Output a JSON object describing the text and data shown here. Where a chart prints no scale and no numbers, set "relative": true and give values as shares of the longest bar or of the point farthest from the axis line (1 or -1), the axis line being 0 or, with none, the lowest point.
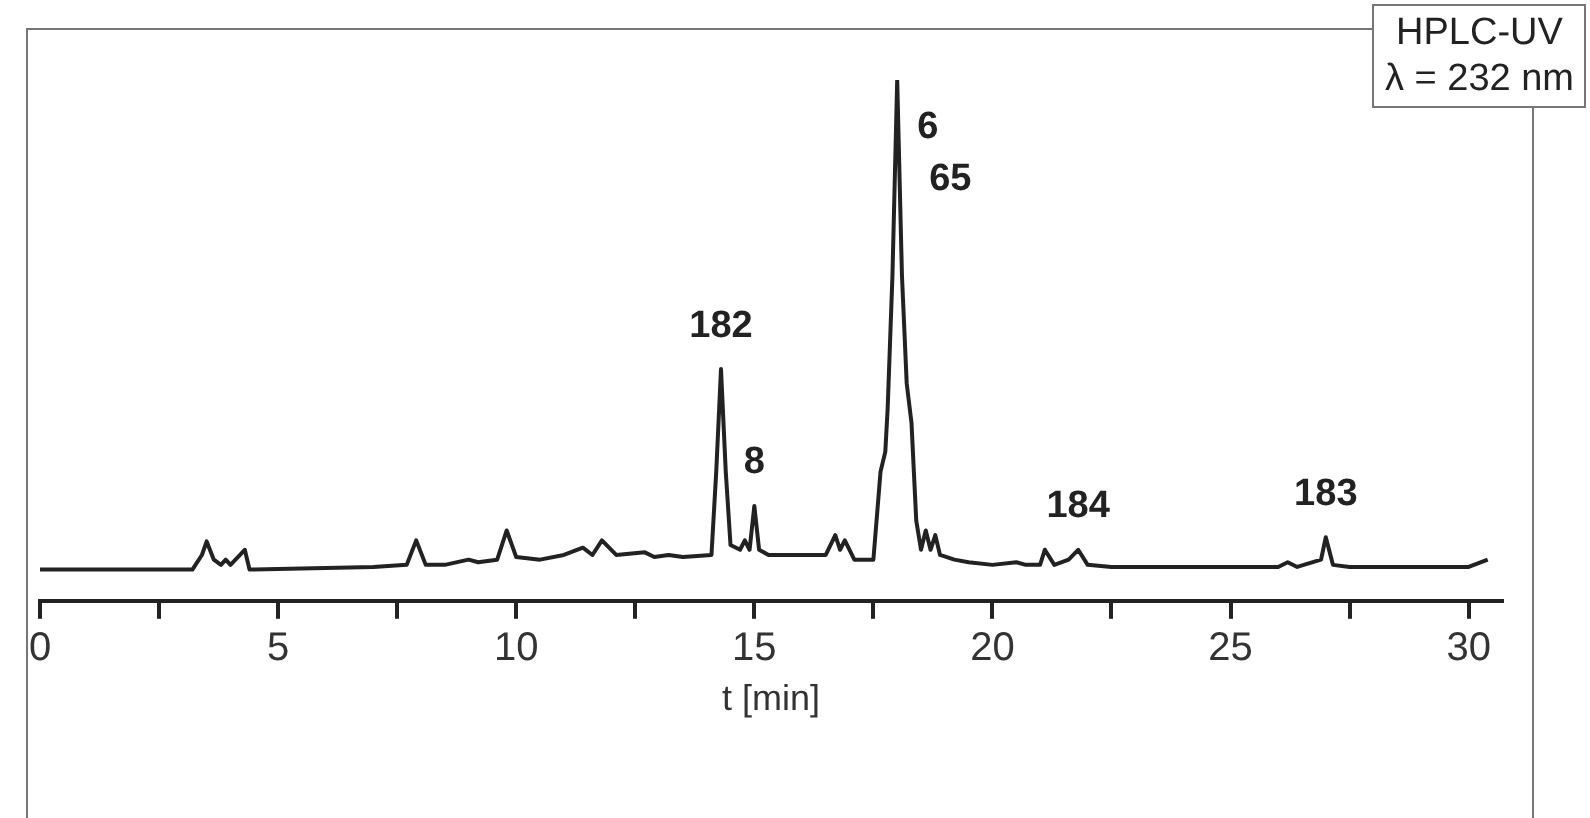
{
  "chart_data": {
    "type": "line",
    "relative": true,
    "xlabel": "t [min]",
    "xlim": [
      0,
      30.7
    ],
    "xticks": [
      0,
      {
        "value": 2.5,
        "label": null
      },
      5,
      {
        "value": 7.5,
        "label": null
      },
      10,
      {
        "value": 12.5,
        "label": null
      },
      15,
      {
        "value": 17.5,
        "label": null
      },
      20,
      {
        "value": 22.5,
        "label": null
      },
      25,
      {
        "value": 27.5,
        "label": null
      },
      30
    ],
    "marker": "none",
    "line_style": "solid",
    "series": [
      {
        "color": "#222222",
        "x": [
          0,
          3.2,
          3.4,
          3.5,
          3.65,
          3.8,
          3.9,
          4.0,
          4.2,
          4.3,
          4.4,
          7.0,
          7.7,
          7.9,
          8.1,
          8.5,
          9.0,
          9.2,
          9.6,
          9.8,
          10.0,
          10.5,
          11.0,
          11.4,
          11.6,
          11.8,
          12.1,
          12.7,
          12.9,
          13.2,
          13.5,
          14.1,
          14.2,
          14.3,
          14.4,
          14.5,
          14.7,
          14.8,
          14.9,
          15.0,
          15.1,
          15.3,
          16.0,
          16.5,
          16.7,
          16.8,
          16.9,
          17.1,
          17.5,
          17.65,
          17.75,
          17.8,
          17.9,
          18.0,
          18.1,
          18.2,
          18.3,
          18.4,
          18.5,
          18.6,
          18.7,
          18.8,
          18.9,
          19.2,
          19.5,
          20.0,
          20.5,
          20.7,
          21.0,
          21.1,
          21.3,
          21.6,
          21.8,
          22.0,
          22.5,
          25.0,
          26.0,
          26.2,
          26.4,
          26.9,
          27.0,
          27.15,
          27.5,
          30.0,
          30.4
        ],
        "values": [
          0.06,
          0.06,
          0.088,
          0.114,
          0.079,
          0.069,
          0.079,
          0.069,
          0.088,
          0.098,
          0.06,
          0.065,
          0.069,
          0.116,
          0.069,
          0.069,
          0.079,
          0.074,
          0.079,
          0.135,
          0.084,
          0.079,
          0.088,
          0.102,
          0.088,
          0.116,
          0.088,
          0.093,
          0.084,
          0.088,
          0.084,
          0.088,
          0.248,
          0.445,
          0.248,
          0.107,
          0.098,
          0.116,
          0.098,
          0.182,
          0.098,
          0.088,
          0.088,
          0.088,
          0.126,
          0.098,
          0.116,
          0.079,
          0.079,
          0.248,
          0.286,
          0.37,
          0.624,
          1.0,
          0.624,
          0.417,
          0.342,
          0.154,
          0.098,
          0.135,
          0.098,
          0.126,
          0.088,
          0.079,
          0.074,
          0.069,
          0.074,
          0.069,
          0.069,
          0.098,
          0.069,
          0.079,
          0.098,
          0.069,
          0.065,
          0.065,
          0.065,
          0.074,
          0.065,
          0.079,
          0.122,
          0.069,
          0.065,
          0.065,
          0.079
        ]
      }
    ],
    "annotations": [
      "HPLC-UV",
      "λ = 232 nm",
      {
        "text": "182",
        "x": 14.3,
        "y": 0.445
      },
      {
        "text": "8",
        "x": 15.0,
        "y": 0.182
      },
      {
        "text": "6",
        "x": 18.0,
        "y": 1.0
      },
      {
        "text": "65",
        "x": 18.0,
        "y": 1.0
      },
      {
        "text": "184",
        "x": 21.8,
        "y": 0.098
      },
      {
        "text": "183",
        "x": 27.0,
        "y": 0.122
      }
    ]
  }
}
